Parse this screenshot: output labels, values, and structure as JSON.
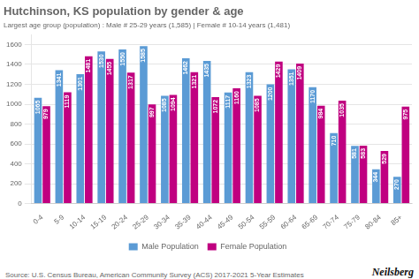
{
  "chart_data": {
    "type": "bar",
    "title": "Hutchinson, KS population by gender & age",
    "subtitle": "Largest age group (population) : Male # 25-29 years (1,585) | Female # 10-14 years (1,481)",
    "categories": [
      "0-4",
      "5-9",
      "10-14",
      "15-19",
      "20-24",
      "25-29",
      "30-34",
      "35-39",
      "40-44",
      "45-49",
      "50-54",
      "55-59",
      "60-64",
      "65-69",
      "70-74",
      "75-79",
      "80-84",
      "85+"
    ],
    "series": [
      {
        "name": "Male Population",
        "color": "#5b9bd5",
        "values": [
          1065,
          1341,
          1301,
          1530,
          1550,
          1585,
          1085,
          1462,
          1435,
          1117,
          1323,
          1200,
          1351,
          1170,
          710,
          581,
          344,
          270
        ]
      },
      {
        "name": "Female Population",
        "color": "#c00080",
        "values": [
          979,
          1119,
          1481,
          1455,
          1317,
          997,
          1094,
          1321,
          1072,
          1160,
          1085,
          1429,
          1409,
          984,
          1035,
          583,
          529,
          975
        ]
      }
    ],
    "ylim": [
      0,
      1700
    ],
    "yticks": [
      0,
      200,
      400,
      600,
      800,
      1000,
      1200,
      1400,
      1600
    ],
    "grid": true,
    "legend": "bottom",
    "data_labels": true,
    "annotations": [
      "Source: U.S. Census Bureau, American Community Survey (ACS) 2017-2021 5-Year Estimates",
      "Neilsberg"
    ]
  }
}
